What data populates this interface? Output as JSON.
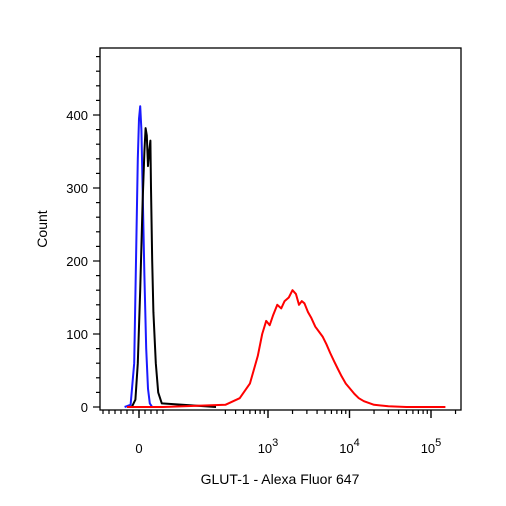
{
  "chart_data": {
    "type": "line",
    "xlabel": "GLUT-1 - Alexa Fluor 647",
    "ylabel": "Count",
    "x_scale": "biexponential",
    "ylim": [
      0,
      480
    ],
    "y_ticks": [
      0,
      100,
      200,
      300,
      400
    ],
    "y_tick_labels": [
      "0",
      "100",
      "200",
      "300",
      "400"
    ],
    "x_ticks": [
      {
        "value": 0,
        "base": "0",
        "exp": ""
      },
      {
        "value": 1000,
        "base": "10",
        "exp": "3"
      },
      {
        "value": 10000,
        "base": "10",
        "exp": "4"
      },
      {
        "value": 100000,
        "base": "10",
        "exp": "5"
      }
    ],
    "grid": false,
    "legend": "none",
    "series": [
      {
        "color": "#1a1aff",
        "points": [
          [
            -120,
            0
          ],
          [
            -70,
            3
          ],
          [
            -40,
            60
          ],
          [
            -25,
            200
          ],
          [
            -10,
            340
          ],
          [
            0,
            395
          ],
          [
            10,
            412
          ],
          [
            20,
            380
          ],
          [
            30,
            300
          ],
          [
            45,
            180
          ],
          [
            60,
            80
          ],
          [
            75,
            25
          ],
          [
            90,
            5
          ],
          [
            110,
            0
          ]
        ]
      },
      {
        "color": "#000000",
        "points": [
          [
            -60,
            0
          ],
          [
            -30,
            10
          ],
          [
            -10,
            60
          ],
          [
            10,
            160
          ],
          [
            30,
            280
          ],
          [
            45,
            350
          ],
          [
            55,
            382
          ],
          [
            65,
            372
          ],
          [
            75,
            330
          ],
          [
            85,
            350
          ],
          [
            95,
            365
          ],
          [
            100,
            300
          ],
          [
            110,
            200
          ],
          [
            120,
            130
          ],
          [
            140,
            60
          ],
          [
            160,
            20
          ],
          [
            190,
            5
          ],
          [
            230,
            0
          ]
        ]
      },
      {
        "color": "#ff0000",
        "points": [
          [
            -100,
            0
          ],
          [
            200,
            0
          ],
          [
            300,
            3
          ],
          [
            450,
            12
          ],
          [
            600,
            32
          ],
          [
            750,
            70
          ],
          [
            850,
            100
          ],
          [
            950,
            118
          ],
          [
            1050,
            112
          ],
          [
            1150,
            125
          ],
          [
            1300,
            140
          ],
          [
            1450,
            135
          ],
          [
            1600,
            145
          ],
          [
            1800,
            150
          ],
          [
            2000,
            160
          ],
          [
            2200,
            155
          ],
          [
            2400,
            140
          ],
          [
            2600,
            145
          ],
          [
            2800,
            142
          ],
          [
            3100,
            130
          ],
          [
            3400,
            122
          ],
          [
            3800,
            110
          ],
          [
            4300,
            102
          ],
          [
            4700,
            96
          ],
          [
            5200,
            86
          ],
          [
            5800,
            74
          ],
          [
            6500,
            62
          ],
          [
            7200,
            52
          ],
          [
            8000,
            42
          ],
          [
            9000,
            32
          ],
          [
            10000,
            26
          ],
          [
            11500,
            18
          ],
          [
            13000,
            12
          ],
          [
            15000,
            8
          ],
          [
            20000,
            3
          ],
          [
            30000,
            1
          ],
          [
            50000,
            0
          ],
          [
            150000,
            0
          ]
        ]
      }
    ]
  }
}
